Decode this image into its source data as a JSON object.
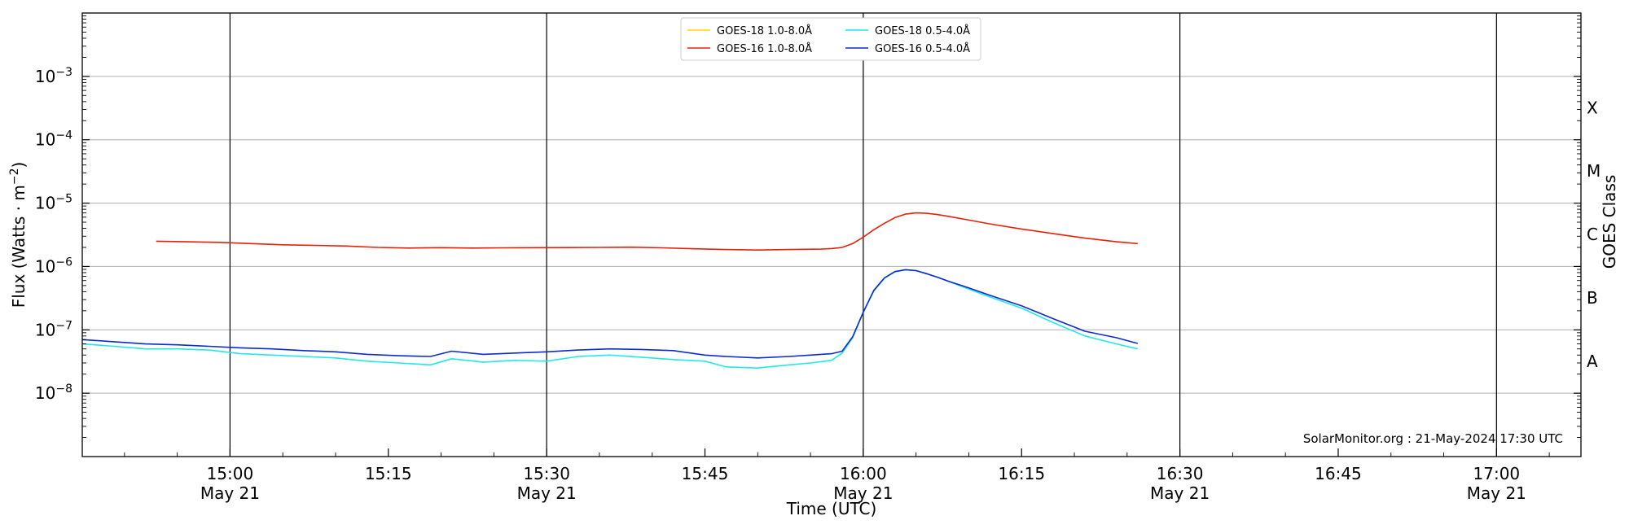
{
  "chart_data": {
    "type": "line",
    "xlabel": "Time (UTC)",
    "ylabel_main": "Flux (Watts · m",
    "ylabel_exp": "−2",
    "ylabel_close": ")",
    "right_label": "GOES Class",
    "credit": "SolarMonitor.org : 21-May-2024 17:30 UTC",
    "y_scale": "log",
    "ylim": [
      1e-09,
      0.01
    ],
    "xlim_minutes": [
      "14:46",
      "17:08"
    ],
    "grid": "horizontal at decades",
    "legend_position": "top-center",
    "y_ticks": [
      {
        "base": "10",
        "exp": "−8",
        "value": 1e-08
      },
      {
        "base": "10",
        "exp": "−7",
        "value": 1e-07
      },
      {
        "base": "10",
        "exp": "−6",
        "value": 1e-06
      },
      {
        "base": "10",
        "exp": "−5",
        "value": 1e-05
      },
      {
        "base": "10",
        "exp": "−4",
        "value": 0.0001
      },
      {
        "base": "10",
        "exp": "−3",
        "value": 0.001
      }
    ],
    "x_ticks": [
      {
        "time": "15:00",
        "date": "May 21"
      },
      {
        "time": "15:15",
        "date": ""
      },
      {
        "time": "15:30",
        "date": "May 21"
      },
      {
        "time": "15:45",
        "date": ""
      },
      {
        "time": "16:00",
        "date": "May 21"
      },
      {
        "time": "16:15",
        "date": ""
      },
      {
        "time": "16:30",
        "date": "May 21"
      },
      {
        "time": "16:45",
        "date": ""
      },
      {
        "time": "17:00",
        "date": "May 21"
      }
    ],
    "day_lines": [
      "15:00",
      "15:30",
      "16:00",
      "16:30",
      "17:00"
    ],
    "goes_classes": [
      {
        "label": "A",
        "value": 3.2e-08
      },
      {
        "label": "B",
        "value": 3.2e-07
      },
      {
        "label": "C",
        "value": 3.2e-06
      },
      {
        "label": "M",
        "value": 3.2e-05
      },
      {
        "label": "X",
        "value": 0.00032
      }
    ],
    "series": [
      {
        "name": "GOES-18 1.0-8.0Å",
        "color": "#ffd700",
        "x": [],
        "y": []
      },
      {
        "name": "GOES-16 1.0-8.0Å",
        "color": "#e8200a",
        "x": [
          "14:53",
          "14:56",
          "14:59",
          "15:02",
          "15:05",
          "15:08",
          "15:11",
          "15:14",
          "15:17",
          "15:20",
          "15:23",
          "15:26",
          "15:29",
          "15:32",
          "15:35",
          "15:38",
          "15:41",
          "15:44",
          "15:47",
          "15:50",
          "15:53",
          "15:56",
          "15:57",
          "15:58",
          "15:59",
          "16:00",
          "16:01",
          "16:02",
          "16:03",
          "16:04",
          "16:05",
          "16:06",
          "16:07",
          "16:08",
          "16:10",
          "16:12",
          "16:15",
          "16:18",
          "16:21",
          "16:24",
          "16:26"
        ],
        "y": [
          2.5e-06,
          2.45e-06,
          2.4e-06,
          2.3e-06,
          2.2e-06,
          2.15e-06,
          2.1e-06,
          2e-06,
          1.95e-06,
          1.98e-06,
          1.95e-06,
          1.97e-06,
          1.98e-06,
          1.99e-06,
          2e-06,
          2.02e-06,
          1.97e-06,
          1.9e-06,
          1.85e-06,
          1.82e-06,
          1.85e-06,
          1.88e-06,
          1.92e-06,
          2e-06,
          2.3e-06,
          2.9e-06,
          3.8e-06,
          4.8e-06,
          5.9e-06,
          6.7e-06,
          7e-06,
          6.9e-06,
          6.6e-06,
          6.2e-06,
          5.4e-06,
          4.7e-06,
          3.9e-06,
          3.3e-06,
          2.8e-06,
          2.45e-06,
          2.3e-06
        ]
      },
      {
        "name": "GOES-18 0.5-4.0Å",
        "color": "#22e8e8",
        "x": [
          "14:46",
          "14:49",
          "14:52",
          "14:55",
          "14:58",
          "15:01",
          "15:04",
          "15:07",
          "15:10",
          "15:13",
          "15:16",
          "15:19",
          "15:21",
          "15:24",
          "15:27",
          "15:30",
          "15:33",
          "15:36",
          "15:39",
          "15:42",
          "15:45",
          "15:47",
          "15:50",
          "15:53",
          "15:55",
          "15:57",
          "15:58",
          "15:59",
          "16:00",
          "16:01",
          "16:02",
          "16:03",
          "16:04",
          "16:05",
          "16:06",
          "16:07",
          "16:08",
          "16:10",
          "16:12",
          "16:15",
          "16:18",
          "16:21",
          "16:24",
          "16:26"
        ],
        "y": [
          6e-08,
          5.5e-08,
          5e-08,
          5e-08,
          4.8e-08,
          4.2e-08,
          4e-08,
          3.8e-08,
          3.6e-08,
          3.2e-08,
          3e-08,
          2.8e-08,
          3.5e-08,
          3.1e-08,
          3.3e-08,
          3.2e-08,
          3.8e-08,
          4e-08,
          3.7e-08,
          3.4e-08,
          3.2e-08,
          2.6e-08,
          2.5e-08,
          2.8e-08,
          3e-08,
          3.3e-08,
          4.3e-08,
          7.5e-08,
          1.9e-07,
          4.1e-07,
          6.5e-07,
          8.2e-07,
          8.9e-07,
          8.6e-07,
          7.7e-07,
          6.8e-07,
          5.9e-07,
          4.4e-07,
          3.3e-07,
          2.2e-07,
          1.3e-07,
          8e-08,
          6e-08,
          5e-08
        ]
      },
      {
        "name": "GOES-16 0.5-4.0Å",
        "color": "#0b2bd4",
        "x": [
          "14:46",
          "14:49",
          "14:52",
          "14:55",
          "14:58",
          "15:01",
          "15:04",
          "15:07",
          "15:10",
          "15:13",
          "15:16",
          "15:19",
          "15:21",
          "15:24",
          "15:27",
          "15:30",
          "15:33",
          "15:36",
          "15:39",
          "15:42",
          "15:45",
          "15:47",
          "15:50",
          "15:53",
          "15:55",
          "15:57",
          "15:58",
          "15:59",
          "16:00",
          "16:01",
          "16:02",
          "16:03",
          "16:04",
          "16:05",
          "16:06",
          "16:07",
          "16:08",
          "16:10",
          "16:12",
          "16:15",
          "16:18",
          "16:21",
          "16:24",
          "16:26"
        ],
        "y": [
          7e-08,
          6.5e-08,
          6e-08,
          5.8e-08,
          5.5e-08,
          5.2e-08,
          5e-08,
          4.7e-08,
          4.5e-08,
          4.1e-08,
          3.9e-08,
          3.8e-08,
          4.6e-08,
          4.1e-08,
          4.3e-08,
          4.5e-08,
          4.8e-08,
          5e-08,
          4.9e-08,
          4.7e-08,
          4e-08,
          3.8e-08,
          3.6e-08,
          3.8e-08,
          4e-08,
          4.2e-08,
          4.6e-08,
          7.8e-08,
          1.9e-07,
          4.2e-07,
          6.6e-07,
          8.3e-07,
          8.9e-07,
          8.6e-07,
          7.7e-07,
          6.8e-07,
          5.9e-07,
          4.6e-07,
          3.5e-07,
          2.4e-07,
          1.5e-07,
          9.5e-08,
          7.5e-08,
          6.1e-08
        ]
      }
    ]
  }
}
